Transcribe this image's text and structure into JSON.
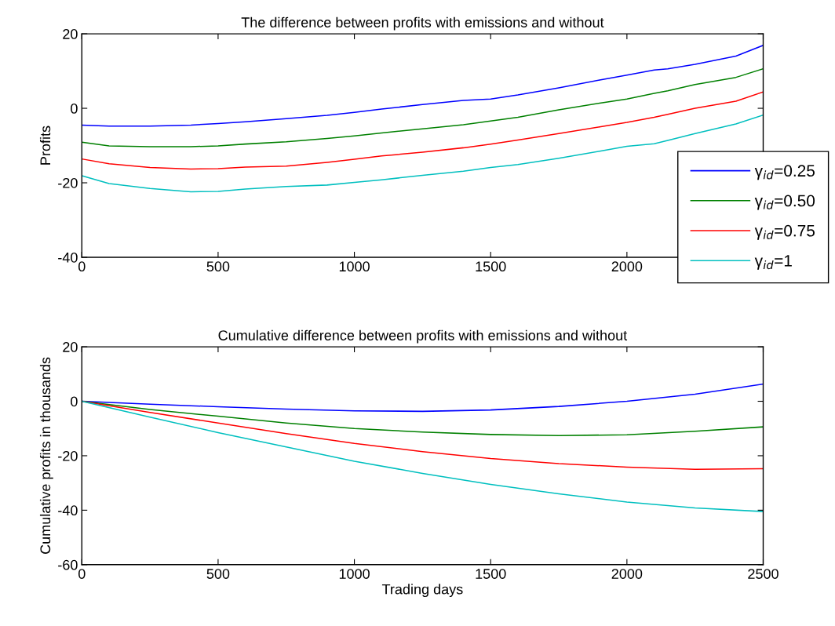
{
  "chart_data": [
    {
      "type": "line",
      "title": "The difference between profits with emissions and without",
      "ylabel": "Profits",
      "xlim": [
        0,
        2500
      ],
      "ylim": [
        -40,
        20
      ],
      "xticks": [
        0,
        500,
        1000,
        1500,
        2000,
        {
          "value": 2500,
          "label": null
        }
      ],
      "yticks": [
        -40,
        -20,
        0,
        20
      ],
      "grid": false,
      "legend": "right",
      "line_style": "solid",
      "marker": "none",
      "x": [
        0,
        100,
        250,
        400,
        500,
        600,
        750,
        900,
        1000,
        1100,
        1250,
        1400,
        1500,
        1600,
        1750,
        1900,
        2000,
        2100,
        2150,
        2250,
        2400,
        2500
      ],
      "series": [
        {
          "name": "γ$_{id}$=0.25",
          "color": "#0000ff",
          "values": [
            -4.5,
            -4.8,
            -4.8,
            -4.5,
            -4.1,
            -3.6,
            -2.8,
            -1.9,
            -1.1,
            -0.2,
            1.0,
            2.1,
            2.5,
            3.6,
            5.5,
            7.6,
            8.9,
            10.3,
            10.6,
            11.8,
            14.0,
            16.9
          ]
        },
        {
          "name": "γ$_{id}$=0.50",
          "color": "#008000",
          "values": [
            -9.1,
            -10.1,
            -10.3,
            -10.3,
            -10.1,
            -9.6,
            -9.0,
            -8.1,
            -7.4,
            -6.6,
            -5.5,
            -4.4,
            -3.4,
            -2.4,
            -0.4,
            1.4,
            2.5,
            4.0,
            4.7,
            6.4,
            8.3,
            10.6
          ]
        },
        {
          "name": "γ$_{id}$=0.75",
          "color": "#ff0000",
          "values": [
            -13.6,
            -14.9,
            -15.9,
            -16.3,
            -16.2,
            -15.8,
            -15.5,
            -14.5,
            -13.7,
            -12.8,
            -11.8,
            -10.6,
            -9.6,
            -8.5,
            -6.8,
            -5.0,
            -3.8,
            -2.4,
            -1.6,
            0.0,
            1.9,
            4.4
          ]
        },
        {
          "name": "γ$_{id}$=1",
          "color": "#00bfbf",
          "values": [
            -18.1,
            -20.2,
            -21.5,
            -22.4,
            -22.3,
            -21.7,
            -21.0,
            -20.6,
            -19.9,
            -19.2,
            -18.0,
            -16.9,
            -15.9,
            -15.1,
            -13.4,
            -11.5,
            -10.2,
            -9.5,
            -8.6,
            -6.8,
            -4.2,
            -1.8
          ]
        }
      ]
    },
    {
      "type": "line",
      "title": "Cumulative difference between profits with emissions and without",
      "xlabel": "Trading days",
      "ylabel": "Cumulative profits in thousands",
      "xlim": [
        0,
        2500
      ],
      "ylim": [
        -60,
        20
      ],
      "xticks": [
        0,
        500,
        1000,
        1500,
        2000,
        2500
      ],
      "yticks": [
        -60,
        -40,
        -20,
        0,
        20
      ],
      "grid": false,
      "line_style": "solid",
      "marker": "none",
      "x": [
        0,
        250,
        500,
        750,
        1000,
        1250,
        1500,
        1750,
        2000,
        2250,
        2500
      ],
      "series": [
        {
          "color": "#0000ff",
          "values": [
            0,
            -1.1,
            -2.0,
            -2.9,
            -3.5,
            -3.7,
            -3.2,
            -1.9,
            0.0,
            2.6,
            6.3
          ]
        },
        {
          "color": "#008000",
          "values": [
            0,
            -3.0,
            -5.5,
            -8.0,
            -10.0,
            -11.3,
            -12.2,
            -12.6,
            -12.3,
            -11.0,
            -9.4
          ]
        },
        {
          "color": "#ff0000",
          "values": [
            0,
            -4.1,
            -8.0,
            -11.9,
            -15.5,
            -18.5,
            -21.0,
            -22.9,
            -24.2,
            -25.0,
            -24.8
          ]
        },
        {
          "color": "#00bfbf",
          "values": [
            0,
            -5.8,
            -11.5,
            -16.8,
            -22.0,
            -26.5,
            -30.5,
            -34.0,
            -37.0,
            -39.2,
            -40.5
          ]
        }
      ]
    }
  ]
}
